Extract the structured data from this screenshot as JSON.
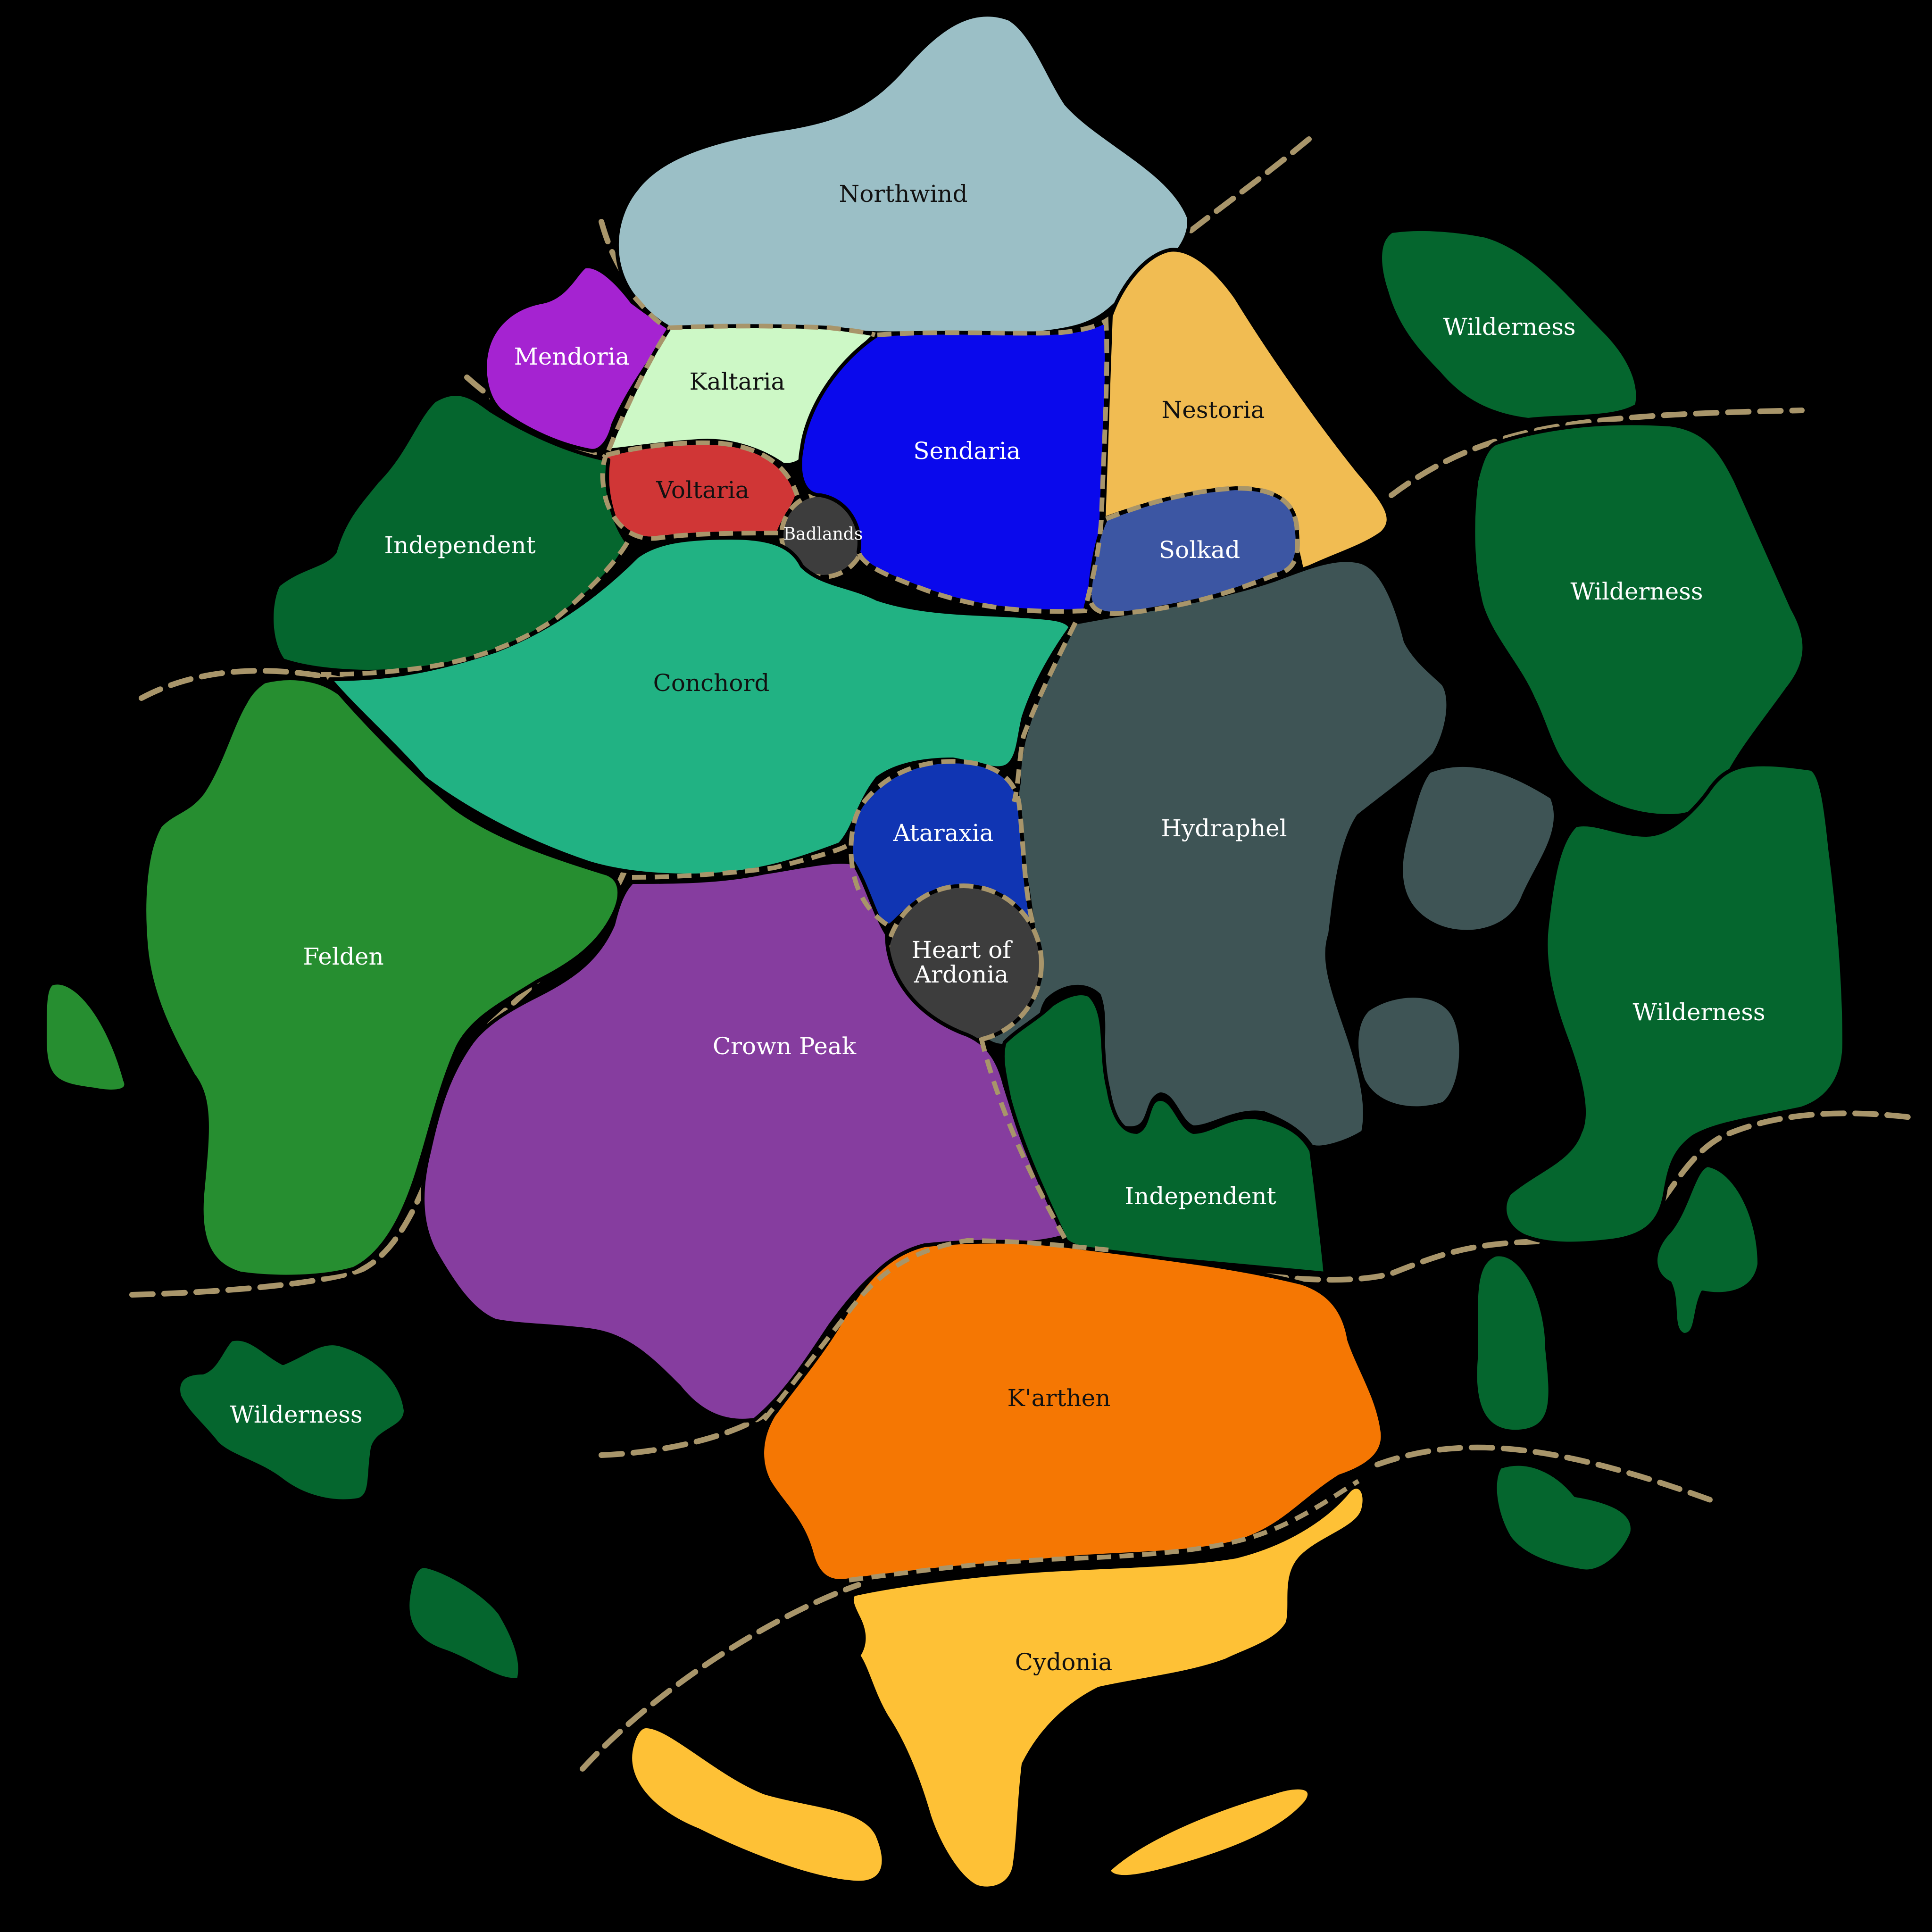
{
  "colors": {
    "background": "#000000",
    "border": "#a8956a",
    "label_light": "#ffffff",
    "label_dark": "#111111"
  },
  "regions": {
    "northwind": {
      "label": "Northwind",
      "color": "#9bbfc6"
    },
    "mendoria": {
      "label": "Mendoria",
      "color": "#a523d1"
    },
    "kaltaria": {
      "label": "Kaltaria",
      "color": "#cdf8c6"
    },
    "voltaria": {
      "label": "Voltaria",
      "color": "#d03636"
    },
    "badlands": {
      "label": "Badlands",
      "color": "#3d3d3d"
    },
    "sendaria": {
      "label": "Sendaria",
      "color": "#0a09ec"
    },
    "nestoria": {
      "label": "Nestoria",
      "color": "#f1bc52"
    },
    "solkad": {
      "label": "Solkad",
      "color": "#3c56a3"
    },
    "independent_nw": {
      "label": "Independent",
      "color": "#05662e"
    },
    "conchord": {
      "label": "Conchord",
      "color": "#21b283"
    },
    "hydraphel": {
      "label": "Hydraphel",
      "color": "#3e5455"
    },
    "ataraxia": {
      "label": "Ataraxia",
      "color": "#1035b3"
    },
    "heart_of_ardonia": {
      "label_line1": "Heart of",
      "label_line2": "Ardonia",
      "color": "#3d3d3d"
    },
    "felden": {
      "label": "Felden",
      "color": "#268e30"
    },
    "crown_peak": {
      "label": "Crown Peak",
      "color": "#863d9f"
    },
    "independent_se": {
      "label": "Independent",
      "color": "#05662e"
    },
    "karthen": {
      "label": "K'arthen",
      "color": "#f57703"
    },
    "cydonia": {
      "label": "Cydonia",
      "color": "#fec136"
    },
    "wilderness_ne": {
      "label": "Wilderness",
      "color": "#05662e"
    },
    "wilderness_e": {
      "label": "Wilderness",
      "color": "#05662e"
    },
    "wilderness_se": {
      "label": "Wilderness",
      "color": "#05662e"
    },
    "wilderness_sw": {
      "label": "Wilderness",
      "color": "#05662e"
    }
  }
}
